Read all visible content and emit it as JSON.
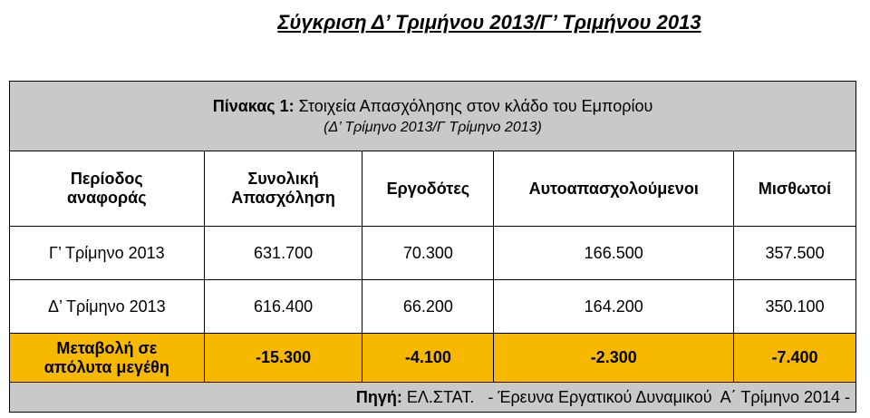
{
  "title": "Σύγκριση Δ’ Τριμήνου 2013/Γ’ Τριμήνου 2013",
  "table": {
    "caption": {
      "label": "Πίνακας 1:",
      "text": "Στοιχεία Απασχόλησης στον κλάδο του Εμπορίου",
      "subtitle": "(Δ’ Τρίμηνο 2013/Γ Τρίμηνο 2013)"
    },
    "columns": [
      [
        "Περίοδος",
        "αναφοράς"
      ],
      [
        "Συνολική",
        "Απασχόληση"
      ],
      [
        "Εργοδότες"
      ],
      [
        "Αυτοαπασχολούμενοι"
      ],
      [
        "Μισθωτοί"
      ]
    ],
    "rows": [
      [
        "Γ’  Τρίμηνο 2013",
        "631.700",
        "70.300",
        "166.500",
        "357.500"
      ],
      [
        "Δ’ Τρίμηνο 2013",
        "616.400",
        "66.200",
        "164.200",
        "350.100"
      ]
    ],
    "change": {
      "label": [
        "Μεταβολή σε",
        "απόλυτα μεγέθη"
      ],
      "values": [
        "-15.300",
        "-4.100",
        "-2.300",
        "-7.400"
      ]
    },
    "source": {
      "label": "Πηγή:",
      "text": "ΕΛ.ΣΤΑΤ.   - Έρευνα Εργατικού Δυναμικού  Α΄ Τρίμηνο 2014 -"
    }
  }
}
